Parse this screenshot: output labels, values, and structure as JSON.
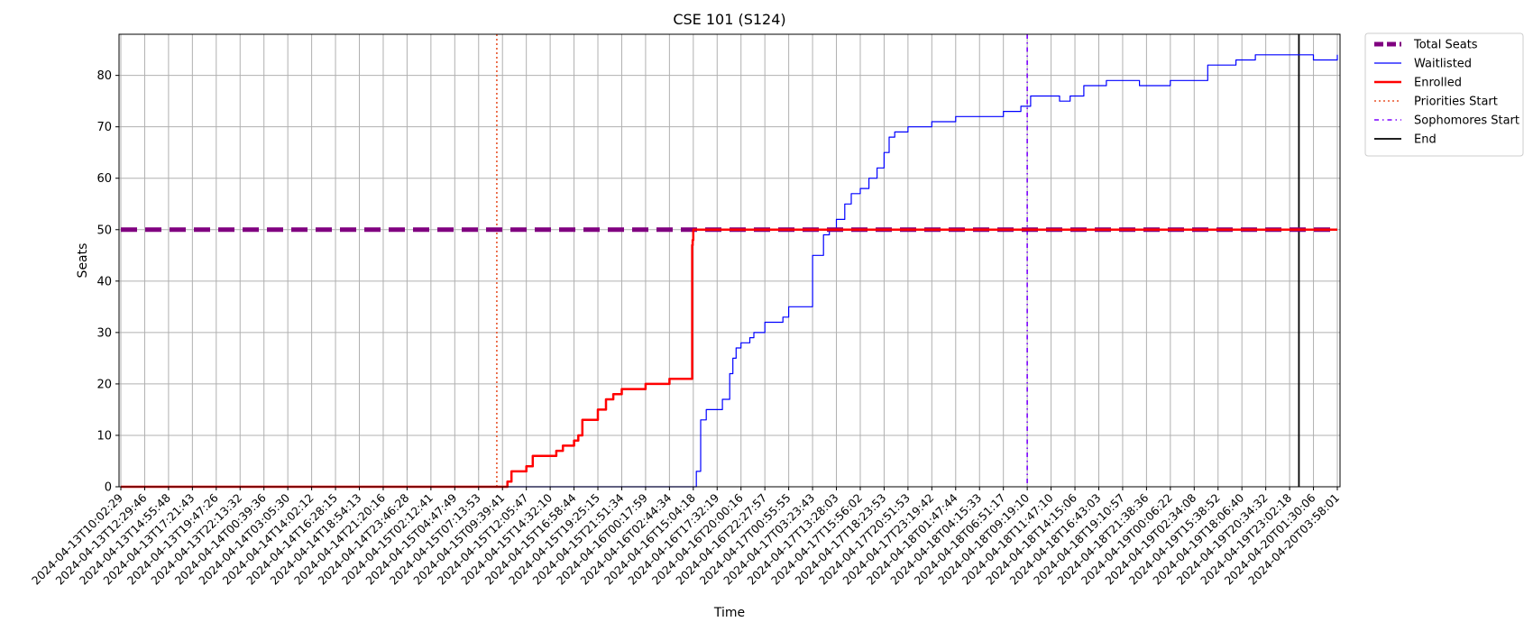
{
  "chart_data": {
    "type": "line",
    "title": "CSE 101 (S124)",
    "xlabel": "Time",
    "ylabel": "Seats",
    "ylim": [
      0,
      88
    ],
    "yticks": [
      0,
      10,
      20,
      30,
      40,
      50,
      60,
      70,
      80
    ],
    "grid": true,
    "legend_position": "outside top-right",
    "x_tick_labels": [
      "2024-04-13T10:02:29",
      "2024-04-13T12:29:46",
      "2024-04-13T14:55:48",
      "2024-04-13T17:21:43",
      "2024-04-13T19:47:26",
      "2024-04-13T22:13:32",
      "2024-04-14T00:39:36",
      "2024-04-14T03:05:30",
      "2024-04-14T14:02:12",
      "2024-04-14T16:28:15",
      "2024-04-14T18:54:13",
      "2024-04-14T21:20:16",
      "2024-04-14T23:46:28",
      "2024-04-15T02:12:41",
      "2024-04-15T04:47:49",
      "2024-04-15T07:13:53",
      "2024-04-15T09:39:41",
      "2024-04-15T12:05:47",
      "2024-04-15T14:32:10",
      "2024-04-15T16:58:44",
      "2024-04-15T19:25:15",
      "2024-04-15T21:51:34",
      "2024-04-16T00:17:59",
      "2024-04-16T02:44:34",
      "2024-04-16T15:04:18",
      "2024-04-16T17:32:19",
      "2024-04-16T20:00:16",
      "2024-04-16T22:27:57",
      "2024-04-17T00:55:55",
      "2024-04-17T03:23:43",
      "2024-04-17T13:28:03",
      "2024-04-17T15:56:02",
      "2024-04-17T18:23:53",
      "2024-04-17T20:51:53",
      "2024-04-17T23:19:42",
      "2024-04-18T01:47:44",
      "2024-04-18T04:15:33",
      "2024-04-18T06:51:17",
      "2024-04-18T09:19:10",
      "2024-04-18T11:47:10",
      "2024-04-18T14:15:06",
      "2024-04-18T16:43:03",
      "2024-04-18T19:10:57",
      "2024-04-18T21:38:36",
      "2024-04-19T00:06:22",
      "2024-04-19T02:34:08",
      "2024-04-19T15:38:52",
      "2024-04-19T18:06:40",
      "2024-04-19T20:34:32",
      "2024-04-19T23:02:18",
      "2024-04-20T01:30:06",
      "2024-04-20T03:58:01"
    ],
    "series": [
      {
        "name": "Total Seats",
        "color": "#800080",
        "style": "dashed-thick",
        "x": [
          "2024-04-13T10:02:29",
          "2024-04-20T03:58:01"
        ],
        "y": [
          50,
          50
        ]
      },
      {
        "name": "Waitlisted",
        "color": "#0000ff",
        "style": "solid-thin",
        "step": true,
        "x": [
          "2024-04-13T10:02:29",
          "2024-04-16T15:04:18",
          "2024-04-16T15:23:00",
          "2024-04-16T15:50:00",
          "2024-04-16T16:25:00",
          "2024-04-16T17:32:19",
          "2024-04-16T18:05:00",
          "2024-04-16T18:50:00",
          "2024-04-16T19:10:00",
          "2024-04-16T19:30:00",
          "2024-04-16T20:00:16",
          "2024-04-16T20:55:00",
          "2024-04-16T21:20:00",
          "2024-04-16T22:27:57",
          "2024-04-17T00:20:00",
          "2024-04-17T00:55:55",
          "2024-04-17T01:55:00",
          "2024-04-17T02:45:00",
          "2024-04-17T03:23:43",
          "2024-04-17T08:00:00",
          "2024-04-17T10:30:00",
          "2024-04-17T13:28:03",
          "2024-04-17T14:20:00",
          "2024-04-17T15:00:00",
          "2024-04-17T15:56:02",
          "2024-04-17T16:50:00",
          "2024-04-17T17:40:00",
          "2024-04-17T18:23:53",
          "2024-04-17T18:55:00",
          "2024-04-17T19:30:00",
          "2024-04-17T20:51:53",
          "2024-04-17T21:40:00",
          "2024-04-17T23:19:42",
          "2024-04-18T01:47:44",
          "2024-04-18T03:40:00",
          "2024-04-18T06:51:17",
          "2024-04-18T08:40:00",
          "2024-04-18T09:40:00",
          "2024-04-18T10:30:00",
          "2024-04-18T12:40:00",
          "2024-04-18T13:45:00",
          "2024-04-18T15:10:00",
          "2024-04-18T16:43:03",
          "2024-04-18T17:30:00",
          "2024-04-18T18:30:00",
          "2024-04-18T20:55:00",
          "2024-04-19T00:06:22",
          "2024-04-19T00:35:00",
          "2024-04-19T02:34:08",
          "2024-04-19T10:00:00",
          "2024-04-19T15:38:52",
          "2024-04-19T16:45:00",
          "2024-04-19T17:30:00",
          "2024-04-19T19:30:00",
          "2024-04-20T01:30:06",
          "2024-04-20T03:58:01"
        ],
        "y": [
          0,
          0,
          3,
          13,
          15,
          15,
          17,
          22,
          25,
          27,
          28,
          29,
          30,
          32,
          33,
          35,
          35,
          35,
          45,
          49,
          50,
          52,
          55,
          57,
          58,
          60,
          62,
          65,
          68,
          69,
          70,
          70,
          71,
          72,
          72,
          73,
          74,
          76,
          76,
          75,
          76,
          78,
          78,
          79,
          79,
          78,
          79,
          79,
          79,
          82,
          82,
          82,
          83,
          84,
          83,
          84
        ]
      },
      {
        "name": "Enrolled",
        "color": "#ff0000",
        "style": "solid-thick",
        "step": true,
        "x": [
          "2024-04-13T10:02:29",
          "2024-04-15T10:10:00",
          "2024-04-15T10:35:00",
          "2024-04-15T11:00:00",
          "2024-04-15T12:05:47",
          "2024-04-15T12:45:00",
          "2024-04-15T14:32:10",
          "2024-04-15T15:10:00",
          "2024-04-15T15:50:00",
          "2024-04-15T16:58:44",
          "2024-04-15T17:25:00",
          "2024-04-15T17:50:00",
          "2024-04-15T19:25:15",
          "2024-04-15T20:15:00",
          "2024-04-15T21:00:00",
          "2024-04-15T21:51:34",
          "2024-04-15T22:40:00",
          "2024-04-16T00:17:59",
          "2024-04-16T02:44:34",
          "2024-04-16T14:30:00",
          "2024-04-16T14:45:00",
          "2024-04-16T15:04:18",
          "2024-04-20T03:58:01"
        ],
        "y": [
          0,
          1,
          3,
          3,
          4,
          6,
          6,
          7,
          8,
          9,
          10,
          13,
          15,
          17,
          18,
          19,
          19,
          20,
          21,
          47,
          48,
          50,
          50
        ]
      }
    ],
    "vertical_markers": [
      {
        "name": "Priorities Start",
        "x": "2024-04-15T09:05:00",
        "color": "#e8532a",
        "style": "dotted"
      },
      {
        "name": "Sophomores Start",
        "x": "2024-04-18T09:19:10",
        "color": "#7b00ff",
        "style": "dashdot"
      },
      {
        "name": "End",
        "x": "2024-04-20T00:00:00",
        "color": "#000000",
        "style": "solid"
      }
    ]
  }
}
